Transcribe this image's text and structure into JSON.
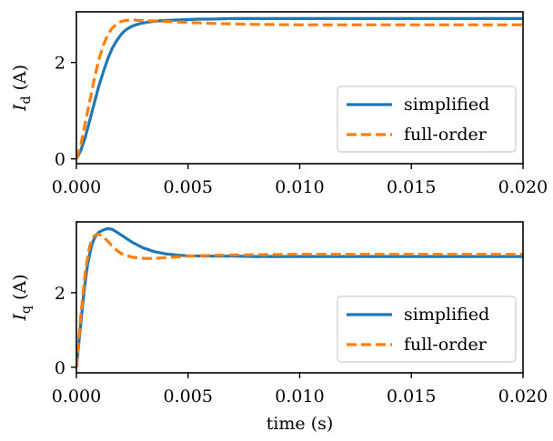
{
  "chart_data": [
    {
      "type": "line",
      "title": "",
      "xlabel": "",
      "ylabel": "I_d (A)",
      "ylabel_symbol": "I",
      "ylabel_subscript": "d",
      "ylabel_unit": "(A)",
      "xlim": [
        0,
        0.02
      ],
      "ylim": [
        -0.1,
        3.05
      ],
      "xticks": [
        0.0,
        0.005,
        0.01,
        0.015,
        0.02
      ],
      "xtick_labels": [
        "0.000",
        "0.005",
        "0.010",
        "0.015",
        "0.020"
      ],
      "yticks": [
        0,
        2
      ],
      "ytick_labels": [
        "0",
        "2"
      ],
      "legend_position": "lower-right",
      "grid": false,
      "series": [
        {
          "name": "simplified",
          "color": "#1f77b4",
          "style": "solid",
          "x": [
            0,
            0.0002,
            0.0004,
            0.0006,
            0.0008,
            0.001,
            0.0012,
            0.0014,
            0.0016,
            0.0018,
            0.002,
            0.0022,
            0.0024,
            0.0026,
            0.0028,
            0.003,
            0.0033,
            0.0036,
            0.004,
            0.0045,
            0.005,
            0.0055,
            0.006,
            0.007,
            0.008,
            0.01,
            0.012,
            0.015,
            0.018,
            0.02
          ],
          "y": [
            0,
            0.18,
            0.45,
            0.8,
            1.15,
            1.5,
            1.8,
            2.07,
            2.29,
            2.45,
            2.58,
            2.67,
            2.73,
            2.77,
            2.8,
            2.82,
            2.84,
            2.86,
            2.87,
            2.88,
            2.89,
            2.9,
            2.9,
            2.91,
            2.91,
            2.91,
            2.91,
            2.91,
            2.91,
            2.91
          ]
        },
        {
          "name": "full-order",
          "color": "#ff7f0e",
          "style": "dashed",
          "x": [
            0,
            0.0002,
            0.0004,
            0.0006,
            0.0008,
            0.001,
            0.0012,
            0.0014,
            0.0016,
            0.0018,
            0.002,
            0.0022,
            0.0024,
            0.0026,
            0.0028,
            0.003,
            0.0035,
            0.004,
            0.0045,
            0.005,
            0.0055,
            0.006,
            0.007,
            0.008,
            0.01,
            0.012,
            0.015,
            0.018,
            0.02
          ],
          "y": [
            0,
            0.3,
            0.75,
            1.2,
            1.65,
            2.05,
            2.35,
            2.57,
            2.71,
            2.8,
            2.85,
            2.87,
            2.88,
            2.88,
            2.87,
            2.87,
            2.86,
            2.85,
            2.84,
            2.83,
            2.82,
            2.81,
            2.8,
            2.79,
            2.78,
            2.78,
            2.78,
            2.78,
            2.78
          ]
        }
      ]
    },
    {
      "type": "line",
      "title": "",
      "xlabel": "time (s)",
      "ylabel": "I_q (A)",
      "ylabel_symbol": "I",
      "ylabel_subscript": "q",
      "ylabel_unit": "(A)",
      "xlim": [
        0,
        0.02
      ],
      "ylim": [
        -0.15,
        3.9
      ],
      "xticks": [
        0.0,
        0.005,
        0.01,
        0.015,
        0.02
      ],
      "xtick_labels": [
        "0.000",
        "0.005",
        "0.010",
        "0.015",
        "0.020"
      ],
      "yticks": [
        0,
        2
      ],
      "ytick_labels": [
        "0",
        "2"
      ],
      "legend_position": "lower-right",
      "grid": false,
      "series": [
        {
          "name": "simplified",
          "color": "#1f77b4",
          "style": "solid",
          "x": [
            0,
            0.0001,
            0.0002,
            0.0003,
            0.0004,
            0.0005,
            0.0006,
            0.0007,
            0.0008,
            0.0009,
            0.001,
            0.0012,
            0.0014,
            0.0016,
            0.0018,
            0.002,
            0.0025,
            0.003,
            0.0035,
            0.004,
            0.0045,
            0.005,
            0.006,
            0.007,
            0.008,
            0.01,
            0.012,
            0.015,
            0.018,
            0.02
          ],
          "y": [
            0,
            0.6,
            1.2,
            1.8,
            2.3,
            2.75,
            3.05,
            3.3,
            3.45,
            3.55,
            3.62,
            3.68,
            3.72,
            3.7,
            3.63,
            3.55,
            3.35,
            3.2,
            3.1,
            3.04,
            3.01,
            2.99,
            2.98,
            2.98,
            2.97,
            2.97,
            2.97,
            2.97,
            2.97,
            2.97
          ]
        },
        {
          "name": "full-order",
          "color": "#ff7f0e",
          "style": "dashed",
          "x": [
            0,
            0.0001,
            0.0002,
            0.0003,
            0.0004,
            0.0005,
            0.0006,
            0.0007,
            0.0008,
            0.0009,
            0.001,
            0.0012,
            0.0014,
            0.0016,
            0.0018,
            0.002,
            0.0025,
            0.003,
            0.0035,
            0.004,
            0.0045,
            0.005,
            0.006,
            0.007,
            0.008,
            0.01,
            0.012,
            0.015,
            0.018,
            0.02
          ],
          "y": [
            0,
            0.7,
            1.4,
            2.0,
            2.55,
            2.95,
            3.25,
            3.42,
            3.52,
            3.56,
            3.57,
            3.5,
            3.38,
            3.25,
            3.14,
            3.05,
            2.95,
            2.92,
            2.92,
            2.94,
            2.96,
            2.98,
            3.0,
            3.01,
            3.02,
            3.03,
            3.03,
            3.03,
            3.03,
            3.03
          ]
        }
      ]
    }
  ]
}
